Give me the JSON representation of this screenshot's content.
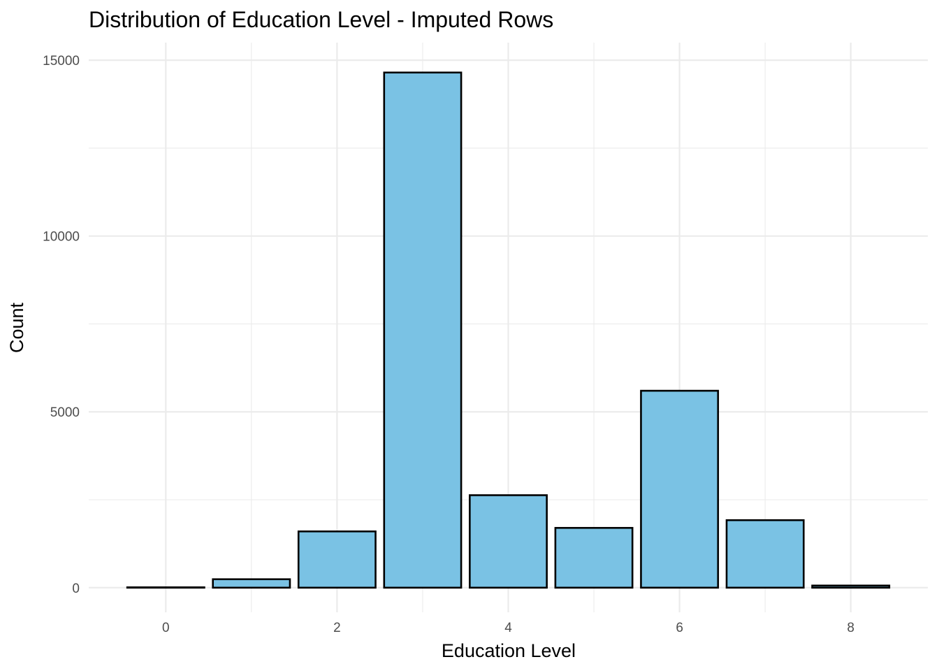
{
  "chart_data": {
    "type": "bar",
    "title": "Distribution of Education Level - Imputed Rows",
    "xlabel": "Education Level",
    "ylabel": "Count",
    "categories": [
      0,
      1,
      2,
      3,
      4,
      5,
      6,
      7,
      8
    ],
    "values": [
      10,
      240,
      1600,
      14650,
      2630,
      1700,
      5600,
      1920,
      60
    ],
    "xlim": [
      -0.9,
      8.9
    ],
    "ylim": [
      -700,
      15500
    ],
    "x_ticks": [
      0,
      2,
      4,
      6,
      8
    ],
    "x_tick_labels": [
      "0",
      "2",
      "4",
      "6",
      "8"
    ],
    "y_ticks": [
      0,
      5000,
      10000,
      15000
    ],
    "y_tick_labels": [
      "0",
      "5000",
      "10000",
      "15000"
    ],
    "bar_color": "#7AC2E4",
    "bar_outline_color": "#000000",
    "grid": true,
    "legend": "none"
  }
}
